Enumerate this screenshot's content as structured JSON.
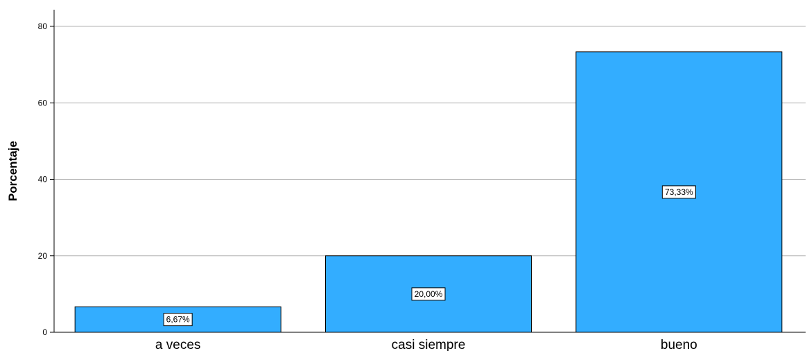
{
  "chart_data": {
    "type": "bar",
    "title": "",
    "xlabel": "",
    "ylabel": "Porcentaje",
    "categories": [
      "a veces",
      "casi siempre",
      "bueno"
    ],
    "values": [
      6.67,
      20.0,
      73.33
    ],
    "data_labels": [
      "6,67%",
      "20,00%",
      "73,33%"
    ],
    "ylim": [
      0,
      80
    ],
    "yticks": [
      0,
      20,
      40,
      60,
      80
    ],
    "ytick_labels": [
      "0",
      "20",
      "40",
      "60",
      "80"
    ],
    "grid": true,
    "legend": "none",
    "colors": {
      "bar_fill": "#33adff",
      "bar_stroke": "#000000",
      "grid": "#b0b0b0",
      "axis": "#000000"
    }
  }
}
